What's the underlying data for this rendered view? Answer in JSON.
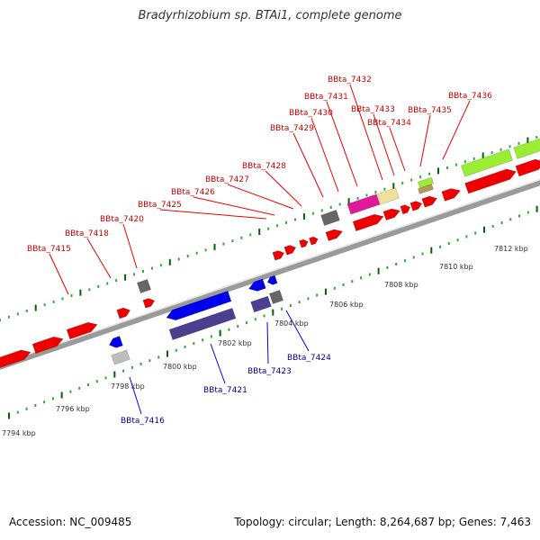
{
  "title": "Bradyrhizobium sp. BTAi1, complete genome",
  "footer": {
    "accession": "Accession: NC_009485",
    "summary": "Topology: circular; Length: 8,264,687 bp; Genes: 7,463"
  },
  "colors": {
    "forward_gene": "#ee0000",
    "reverse_gene": "#0000ee",
    "reverse_dark": "#4b3f8f",
    "gray_gene": "#666666",
    "light_gray": "#bdbdbd",
    "magenta_gene": "#e0189a",
    "khaki_gene": "#eee29a",
    "lime_gene": "#99ee33",
    "tan_gene": "#b59a55",
    "forward_label": "#cc0000",
    "reverse_label": "#0000aa",
    "tick_dark": "#006400",
    "tick_light": "#33aa33"
  },
  "scale_labels": [
    "7794 kbp",
    "7796 kbp",
    "7798 kbp",
    "7800 kbp",
    "7802 kbp",
    "7804 kbp",
    "7806 kbp",
    "7808 kbp",
    "7810 kbp",
    "7812 kbp"
  ],
  "forward_labels": [
    "BBta_7415",
    "BBta_7418",
    "BBta_7420",
    "BBta_7425",
    "BBta_7426",
    "BBta_7427",
    "BBta_7428",
    "BBta_7429",
    "BBta_7430",
    "BBta_7431",
    "BBta_7432",
    "BBta_7433",
    "BBta_7434",
    "BBta_7435",
    "BBta_7436"
  ],
  "reverse_labels": [
    "BBta_7416",
    "BBta_7421",
    "BBta_7423",
    "BBta_7424"
  ]
}
